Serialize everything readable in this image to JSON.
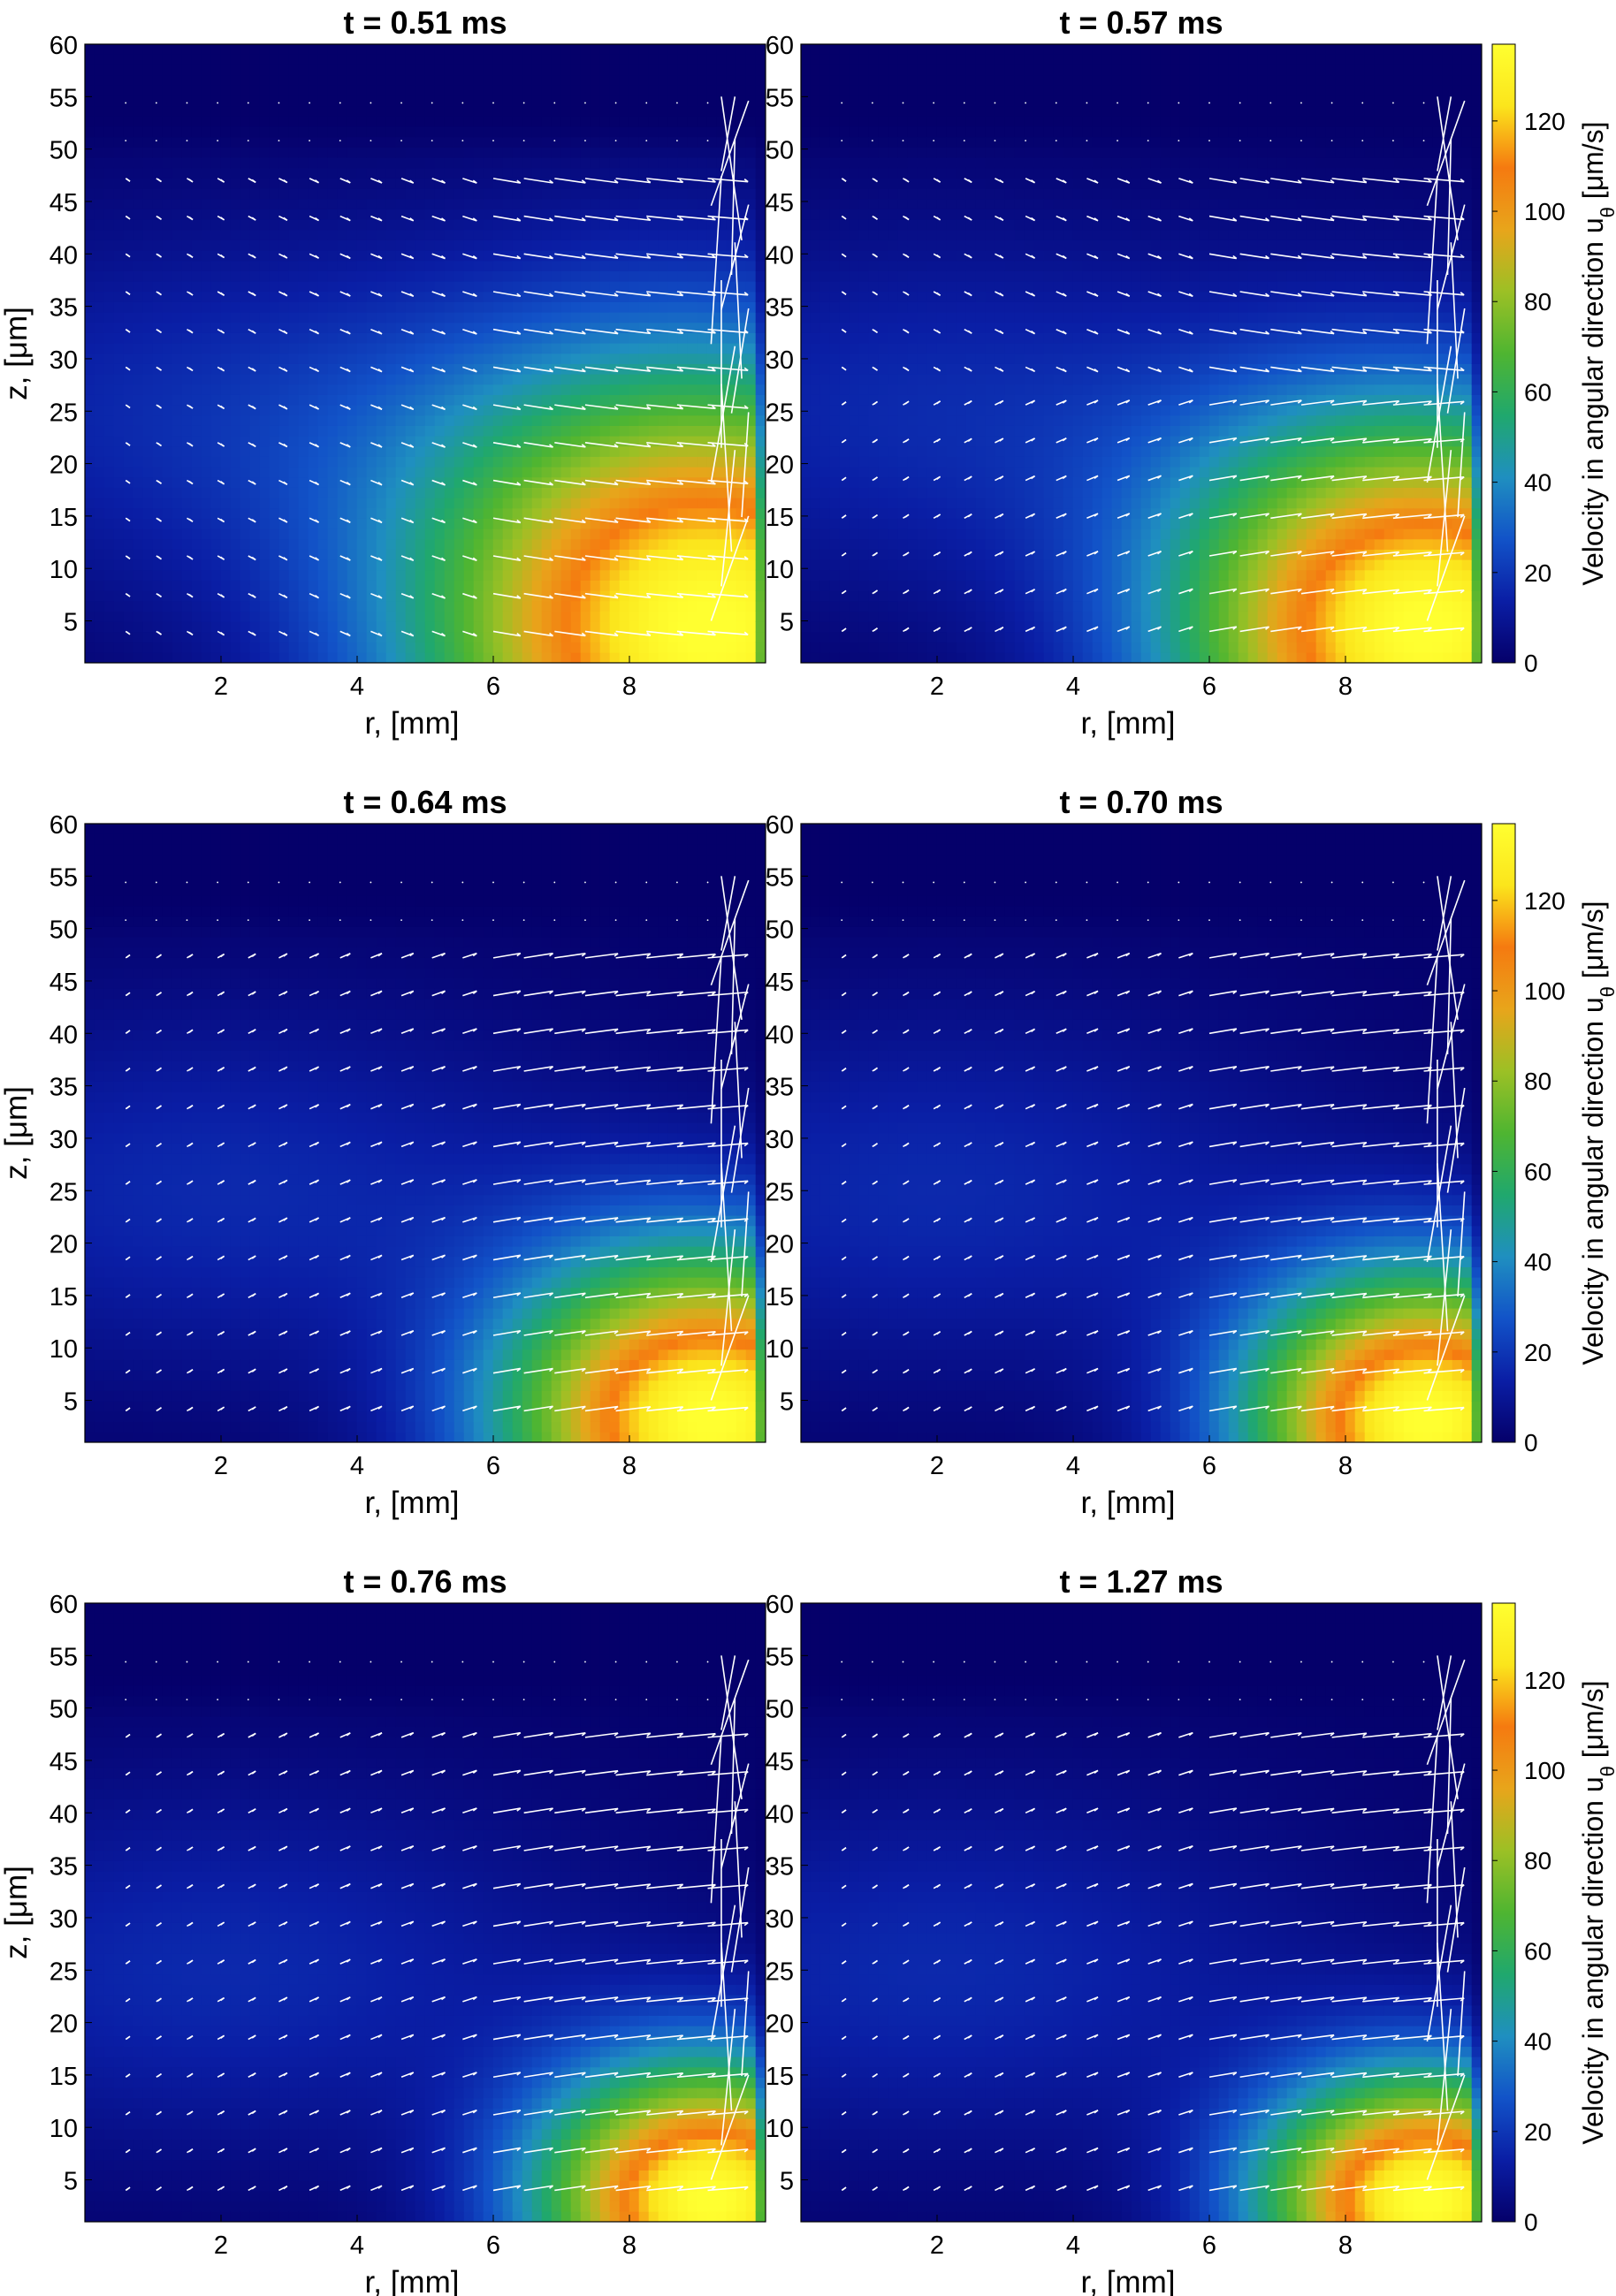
{
  "figure": {
    "xlabel": "r, [mm]",
    "ylabel": "z, [μm]",
    "colorbar_label": "Velocity in angular direction u",
    "colorbar_label_sub": "θ",
    "colorbar_label_unit": " [μm/s]",
    "colorbar_ticks": [
      0,
      20,
      40,
      60,
      80,
      100,
      120
    ],
    "colorbar_range": [
      0,
      137
    ],
    "colormap": [
      "#05006a",
      "#0a1ea5",
      "#1253c8",
      "#1f8fc0",
      "#20a86d",
      "#4fb531",
      "#9cc025",
      "#e8a51b",
      "#f57a10",
      "#fbe51c",
      "#ffff30"
    ],
    "vector_color": "#ffffff",
    "x_ticks": [
      2,
      4,
      6,
      8
    ],
    "y_ticks": [
      5,
      10,
      15,
      20,
      25,
      30,
      35,
      40,
      45,
      50,
      55,
      60
    ]
  },
  "chart_data": [
    {
      "type": "heatmap",
      "title": "t = 0.51 ms",
      "xlabel": "r, [mm]",
      "ylabel": "z, [μm]",
      "xlim": [
        0,
        10
      ],
      "ylim": [
        1,
        60
      ],
      "series_note_colorbar": false,
      "peak": [
        9.2,
        4
      ],
      "peak_value": 137,
      "spread": [
        4.2,
        24
      ],
      "vortex_top": 49,
      "vector_field": "downward"
    },
    {
      "type": "heatmap",
      "title": "t = 0.57 ms",
      "xlabel": "r, [mm]",
      "ylabel": "z, [μm]",
      "xlim": [
        0,
        10
      ],
      "ylim": [
        1,
        60
      ],
      "peak": [
        9.2,
        4
      ],
      "peak_value": 137,
      "spread": [
        3.6,
        20
      ],
      "vortex_top": 49,
      "vector_field": "mixed"
    },
    {
      "type": "heatmap",
      "title": "t = 0.64 ms",
      "xlabel": "r, [mm]",
      "ylabel": "z, [μm]",
      "xlim": [
        0,
        10
      ],
      "ylim": [
        1,
        60
      ],
      "peak": [
        9.2,
        3
      ],
      "peak_value": 137,
      "spread": [
        3.0,
        16
      ],
      "vortex_top": 49,
      "vector_field": "upward"
    },
    {
      "type": "heatmap",
      "title": "t = 0.70 ms",
      "xlabel": "r, [mm]",
      "ylabel": "z, [μm]",
      "xlim": [
        0,
        10
      ],
      "ylim": [
        1,
        60
      ],
      "peak": [
        9.2,
        3
      ],
      "peak_value": 137,
      "spread": [
        2.6,
        14
      ],
      "vortex_top": 49,
      "vector_field": "upward"
    },
    {
      "type": "heatmap",
      "title": "t = 0.76 ms",
      "xlabel": "r, [mm]",
      "ylabel": "z, [μm]",
      "xlim": [
        0,
        10
      ],
      "ylim": [
        1,
        60
      ],
      "peak": [
        9.2,
        3
      ],
      "peak_value": 137,
      "spread": [
        2.5,
        13
      ],
      "vortex_top": 49,
      "vector_field": "upward"
    },
    {
      "type": "heatmap",
      "title": "t = 1.27 ms",
      "xlabel": "r, [mm]",
      "ylabel": "z, [μm]",
      "xlim": [
        0,
        10
      ],
      "ylim": [
        1,
        60
      ],
      "peak": [
        9.2,
        3
      ],
      "peak_value": 137,
      "spread": [
        2.4,
        12
      ],
      "vortex_top": 49,
      "vector_field": "upward"
    }
  ]
}
